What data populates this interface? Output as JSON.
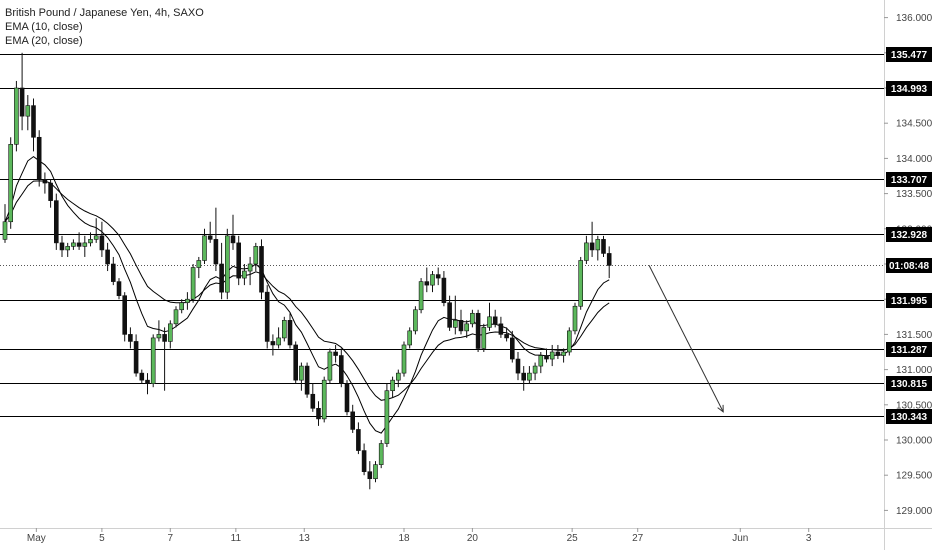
{
  "legend": {
    "title": "British Pound / Japanese Yen, 4h, SAXO",
    "ema1": "EMA (10, close)",
    "ema2": "EMA (20, close)"
  },
  "colors": {
    "bull_fill": "#5cb85c",
    "bear_fill": "#111111",
    "wick": "#111111",
    "level_line": "#000000",
    "label_bg": "#000000",
    "label_text": "#ffffff",
    "axis_text": "#444444",
    "ema": "#000000"
  },
  "chart_data": {
    "type": "candlestick",
    "symbol": "GBPJPY",
    "timeframe": "4h",
    "source": "SAXO",
    "ylim": [
      128.75,
      136.25
    ],
    "xlim": [
      0,
      130
    ],
    "y_ticks": [
      "136.000",
      "135.500",
      "135.000",
      "134.500",
      "134.000",
      "133.500",
      "133.000",
      "132.500",
      "132.000",
      "131.500",
      "131.000",
      "130.500",
      "130.000",
      "129.500",
      "129.000"
    ],
    "x_ticks": [
      {
        "label": "May",
        "x": 5.5
      },
      {
        "label": "5",
        "x": 17
      },
      {
        "label": "7",
        "x": 29
      },
      {
        "label": "11",
        "x": 40.5
      },
      {
        "label": "13",
        "x": 52.5
      },
      {
        "label": "18",
        "x": 70
      },
      {
        "label": "20",
        "x": 82
      },
      {
        "label": "25",
        "x": 99.5
      },
      {
        "label": "27",
        "x": 111
      },
      {
        "label": "Jun",
        "x": 129
      },
      {
        "label": "3",
        "x": 141
      }
    ],
    "levels": [
      {
        "label": "135.477",
        "value": 135.477,
        "style": "solid"
      },
      {
        "label": "134.993",
        "value": 134.993,
        "style": "solid"
      },
      {
        "label": "133.707",
        "value": 133.707,
        "style": "solid"
      },
      {
        "label": "132.928",
        "value": 132.928,
        "style": "solid"
      },
      {
        "label": "01:08:48",
        "value": 132.48,
        "style": "dotted"
      },
      {
        "label": "131.995",
        "value": 131.995,
        "style": "solid"
      },
      {
        "label": "131.287",
        "value": 131.287,
        "style": "solid"
      },
      {
        "label": "130.815",
        "value": 130.815,
        "style": "solid"
      },
      {
        "label": "130.343",
        "value": 130.343,
        "style": "solid"
      }
    ],
    "projection_arrow": {
      "from": {
        "x": 113,
        "y": 132.48
      },
      "to": {
        "x": 126,
        "y": 130.4
      }
    },
    "candles": [
      [
        132.85,
        133.35,
        132.8,
        133.1
      ],
      [
        133.1,
        134.3,
        133.0,
        134.2
      ],
      [
        134.2,
        135.1,
        134.1,
        135.0
      ],
      [
        135.0,
        135.5,
        134.4,
        134.6
      ],
      [
        134.6,
        134.9,
        134.4,
        134.75
      ],
      [
        134.75,
        134.85,
        134.1,
        134.3
      ],
      [
        134.3,
        134.4,
        133.6,
        133.7
      ],
      [
        133.7,
        133.8,
        133.5,
        133.65
      ],
      [
        133.65,
        133.7,
        133.3,
        133.4
      ],
      [
        133.4,
        133.5,
        132.7,
        132.8
      ],
      [
        132.8,
        132.9,
        132.6,
        132.7
      ],
      [
        132.7,
        132.8,
        132.6,
        132.75
      ],
      [
        132.75,
        132.85,
        132.7,
        132.8
      ],
      [
        132.8,
        132.95,
        132.7,
        132.75
      ],
      [
        132.75,
        132.9,
        132.6,
        132.8
      ],
      [
        132.8,
        132.95,
        132.75,
        132.85
      ],
      [
        132.85,
        133.15,
        132.8,
        132.9
      ],
      [
        132.9,
        133.1,
        132.6,
        132.7
      ],
      [
        132.7,
        132.8,
        132.4,
        132.5
      ],
      [
        132.5,
        132.6,
        132.2,
        132.25
      ],
      [
        132.25,
        132.3,
        132.0,
        132.05
      ],
      [
        132.05,
        132.1,
        131.4,
        131.5
      ],
      [
        131.5,
        131.6,
        131.3,
        131.4
      ],
      [
        131.4,
        131.5,
        130.9,
        130.95
      ],
      [
        130.95,
        131.0,
        130.8,
        130.85
      ],
      [
        130.85,
        130.95,
        130.65,
        130.8
      ],
      [
        130.8,
        131.5,
        130.75,
        131.45
      ],
      [
        131.45,
        131.7,
        131.4,
        131.5
      ],
      [
        131.5,
        131.6,
        130.7,
        131.4
      ],
      [
        131.4,
        131.7,
        131.3,
        131.65
      ],
      [
        131.65,
        131.9,
        131.6,
        131.85
      ],
      [
        131.85,
        132.0,
        131.8,
        131.95
      ],
      [
        131.95,
        132.1,
        131.85,
        132.0
      ],
      [
        132.0,
        132.5,
        131.95,
        132.45
      ],
      [
        132.45,
        132.6,
        132.3,
        132.55
      ],
      [
        132.55,
        133.0,
        132.5,
        132.9
      ],
      [
        132.9,
        133.1,
        132.8,
        132.85
      ],
      [
        132.85,
        133.3,
        132.4,
        132.5
      ],
      [
        132.5,
        132.8,
        132.0,
        132.1
      ],
      [
        132.1,
        133.0,
        132.0,
        132.9
      ],
      [
        132.9,
        133.2,
        132.7,
        132.8
      ],
      [
        132.8,
        132.9,
        132.2,
        132.3
      ],
      [
        132.3,
        132.5,
        132.2,
        132.4
      ],
      [
        132.4,
        132.6,
        132.2,
        132.5
      ],
      [
        132.5,
        132.8,
        132.4,
        132.75
      ],
      [
        132.75,
        132.85,
        132.0,
        132.1
      ],
      [
        132.1,
        132.2,
        131.3,
        131.4
      ],
      [
        131.4,
        131.5,
        131.2,
        131.35
      ],
      [
        131.35,
        131.6,
        131.3,
        131.45
      ],
      [
        131.45,
        131.75,
        131.4,
        131.7
      ],
      [
        131.7,
        131.8,
        131.3,
        131.35
      ],
      [
        131.35,
        131.4,
        130.8,
        130.85
      ],
      [
        130.85,
        131.1,
        130.7,
        131.05
      ],
      [
        131.05,
        131.1,
        130.6,
        130.65
      ],
      [
        130.65,
        130.8,
        130.4,
        130.45
      ],
      [
        130.45,
        130.55,
        130.2,
        130.3
      ],
      [
        130.3,
        130.9,
        130.25,
        130.85
      ],
      [
        130.85,
        131.3,
        130.8,
        131.25
      ],
      [
        131.25,
        131.35,
        131.1,
        131.2
      ],
      [
        131.2,
        131.3,
        130.75,
        130.8
      ],
      [
        130.8,
        130.85,
        130.35,
        130.4
      ],
      [
        130.4,
        130.5,
        130.1,
        130.15
      ],
      [
        130.15,
        130.25,
        129.8,
        129.85
      ],
      [
        129.85,
        129.95,
        129.5,
        129.55
      ],
      [
        129.55,
        129.7,
        129.3,
        129.45
      ],
      [
        129.45,
        129.7,
        129.4,
        129.65
      ],
      [
        129.65,
        130.0,
        129.6,
        129.95
      ],
      [
        129.95,
        130.8,
        129.9,
        130.7
      ],
      [
        130.7,
        130.9,
        130.6,
        130.85
      ],
      [
        130.85,
        131.0,
        130.75,
        130.95
      ],
      [
        130.95,
        131.4,
        130.9,
        131.35
      ],
      [
        131.35,
        131.6,
        131.3,
        131.55
      ],
      [
        131.55,
        131.9,
        131.5,
        131.85
      ],
      [
        131.85,
        132.3,
        131.8,
        132.25
      ],
      [
        132.25,
        132.45,
        132.1,
        132.2
      ],
      [
        132.2,
        132.4,
        132.1,
        132.35
      ],
      [
        132.35,
        132.45,
        132.2,
        132.3
      ],
      [
        132.3,
        132.4,
        131.9,
        131.95
      ],
      [
        131.95,
        132.05,
        131.55,
        131.6
      ],
      [
        131.6,
        132.05,
        131.5,
        131.7
      ],
      [
        131.7,
        131.85,
        131.5,
        131.55
      ],
      [
        131.55,
        131.7,
        131.45,
        131.65
      ],
      [
        131.65,
        131.85,
        131.6,
        131.8
      ],
      [
        131.8,
        131.85,
        131.25,
        131.3
      ],
      [
        131.3,
        131.65,
        131.25,
        131.6
      ],
      [
        131.6,
        131.95,
        131.55,
        131.75
      ],
      [
        131.75,
        131.85,
        131.6,
        131.65
      ],
      [
        131.65,
        131.75,
        131.45,
        131.5
      ],
      [
        131.5,
        131.6,
        131.4,
        131.45
      ],
      [
        131.45,
        131.55,
        131.1,
        131.15
      ],
      [
        131.15,
        131.25,
        130.85,
        130.95
      ],
      [
        130.95,
        131.05,
        130.7,
        130.85
      ],
      [
        130.85,
        131.05,
        130.8,
        130.95
      ],
      [
        130.95,
        131.1,
        130.85,
        131.05
      ],
      [
        131.05,
        131.25,
        130.95,
        131.2
      ],
      [
        131.2,
        131.3,
        131.1,
        131.15
      ],
      [
        131.15,
        131.35,
        131.05,
        131.25
      ],
      [
        131.25,
        131.35,
        131.15,
        131.2
      ],
      [
        131.2,
        131.3,
        131.1,
        131.25
      ],
      [
        131.25,
        131.6,
        131.2,
        131.55
      ],
      [
        131.55,
        131.95,
        131.5,
        131.9
      ],
      [
        131.9,
        132.6,
        131.85,
        132.55
      ],
      [
        132.55,
        132.9,
        132.5,
        132.8
      ],
      [
        132.8,
        133.1,
        132.6,
        132.7
      ],
      [
        132.7,
        132.9,
        132.55,
        132.85
      ],
      [
        132.85,
        132.9,
        132.6,
        132.65
      ],
      [
        132.65,
        132.75,
        132.3,
        132.48
      ]
    ],
    "ema_series": [
      {
        "name": "EMA (10, close)",
        "period": 10
      },
      {
        "name": "EMA (20, close)",
        "period": 20
      }
    ]
  }
}
